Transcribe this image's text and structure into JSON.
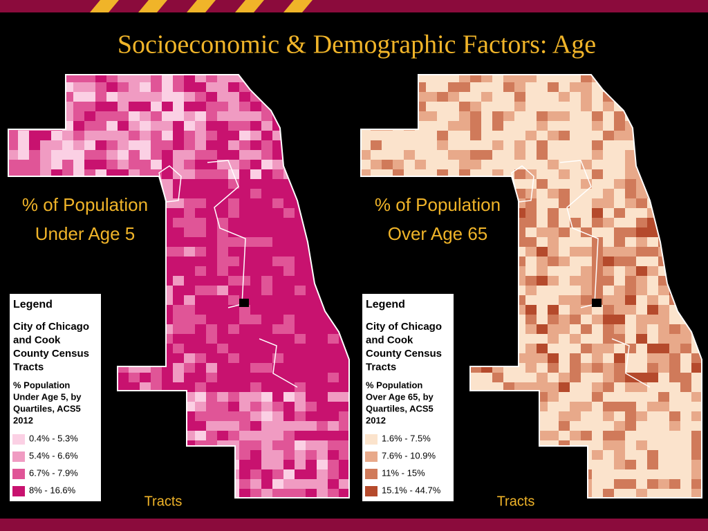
{
  "title": "Socioeconomic & Demographic Factors: Age",
  "maps": [
    {
      "label_lines": [
        "% of Population",
        "Under Age 5"
      ],
      "legend": {
        "title": "Legend",
        "subtitle_lines": [
          "City of Chicago",
          "and Cook",
          "County Census",
          "Tracts"
        ],
        "field_lines": [
          "% Population",
          "Under Age 5, by",
          "Quartiles, ACS5",
          "2012"
        ],
        "items": [
          {
            "label": "0.4% - 5.3%",
            "color": "#fbd0e4"
          },
          {
            "label": "5.4% - 6.6%",
            "color": "#f09bc2"
          },
          {
            "label": "6.7% - 7.9%",
            "color": "#e05597"
          },
          {
            "label": "8% - 16.6%",
            "color": "#c8126f"
          }
        ]
      },
      "footer": "Tracts"
    },
    {
      "label_lines": [
        "% of Population",
        "Over Age 65"
      ],
      "legend": {
        "title": "Legend",
        "subtitle_lines": [
          "City of Chicago",
          "and Cook",
          "County Census",
          "Tracts"
        ],
        "field_lines": [
          "% Population",
          "Over Age 65, by",
          "Quartiles, ACS5",
          "2012"
        ],
        "items": [
          {
            "label": "1.6% - 7.5%",
            "color": "#fbe3cc"
          },
          {
            "label": "7.6% - 10.9%",
            "color": "#e8a98a"
          },
          {
            "label": "11% - 15%",
            "color": "#d07a5a"
          },
          {
            "label": "15.1% - 44.7%",
            "color": "#b54a2c"
          }
        ]
      },
      "footer": "Tracts"
    }
  ]
}
